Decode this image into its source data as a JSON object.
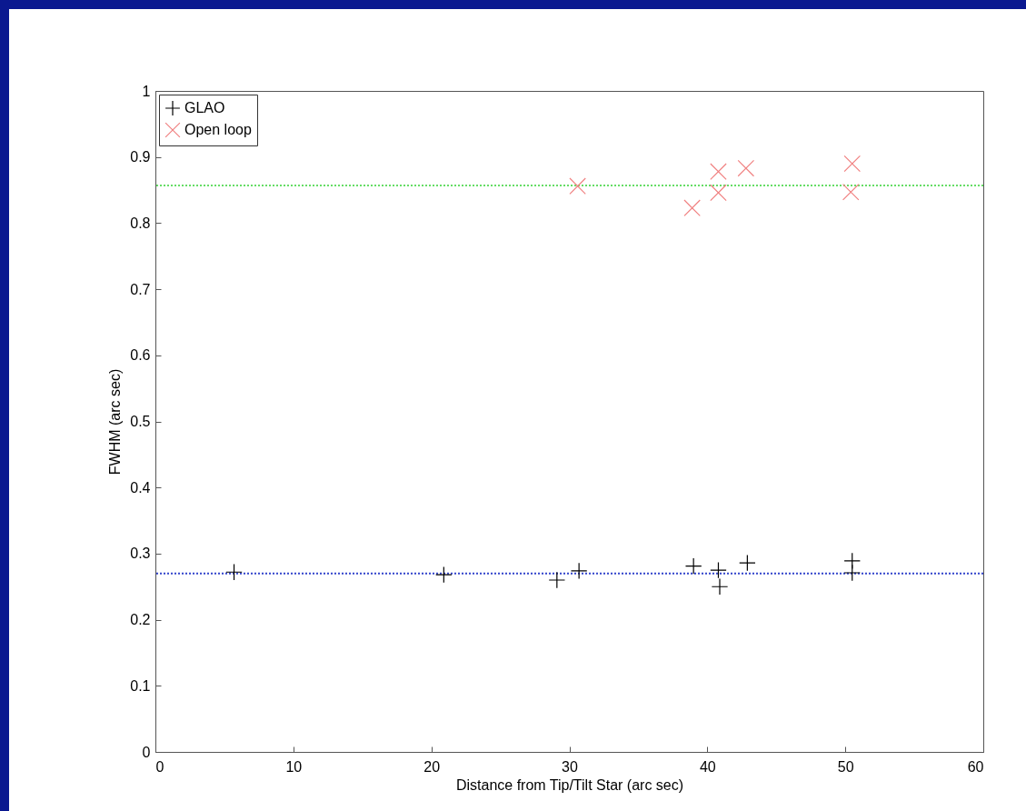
{
  "chart_data": {
    "type": "scatter",
    "xlabel": "Distance from Tip/Tilt Star (arc sec)",
    "ylabel": "FWHM (arc sec)",
    "xlim": [
      0,
      60
    ],
    "xticks": [
      0,
      10,
      20,
      30,
      40,
      50,
      60
    ],
    "ylim": [
      0,
      1
    ],
    "yticks": [
      0,
      0.1,
      0.2,
      0.3,
      0.4,
      0.5,
      0.6,
      0.7,
      0.8,
      0.9,
      1
    ],
    "grid": false,
    "legend": "top left",
    "series": [
      {
        "name": "GLAO",
        "color": "#000000",
        "marker": "cross",
        "x": [
          5.7,
          20.9,
          29.1,
          30.7,
          39,
          40.8,
          40.9,
          42.9,
          50.5,
          50.5
        ],
        "values": [
          0.272,
          0.268,
          0.26,
          0.274,
          0.281,
          0.275,
          0.25,
          0.286,
          0.289,
          0.271
        ]
      },
      {
        "name": "Open loop",
        "color": "#f08080",
        "marker": "x",
        "x": [
          30.6,
          38.9,
          40.8,
          40.8,
          42.8,
          50.5,
          50.4
        ],
        "values": [
          0.856,
          0.823,
          0.846,
          0.878,
          0.883,
          0.89,
          0.847
        ]
      }
    ],
    "ref_lines": [
      {
        "axis": "y",
        "value": 0.27,
        "color": "#3344cc",
        "line_style": "dotted"
      },
      {
        "axis": "y",
        "value": 0.857,
        "color": "#66dd66",
        "line_style": "dotted"
      }
    ]
  }
}
